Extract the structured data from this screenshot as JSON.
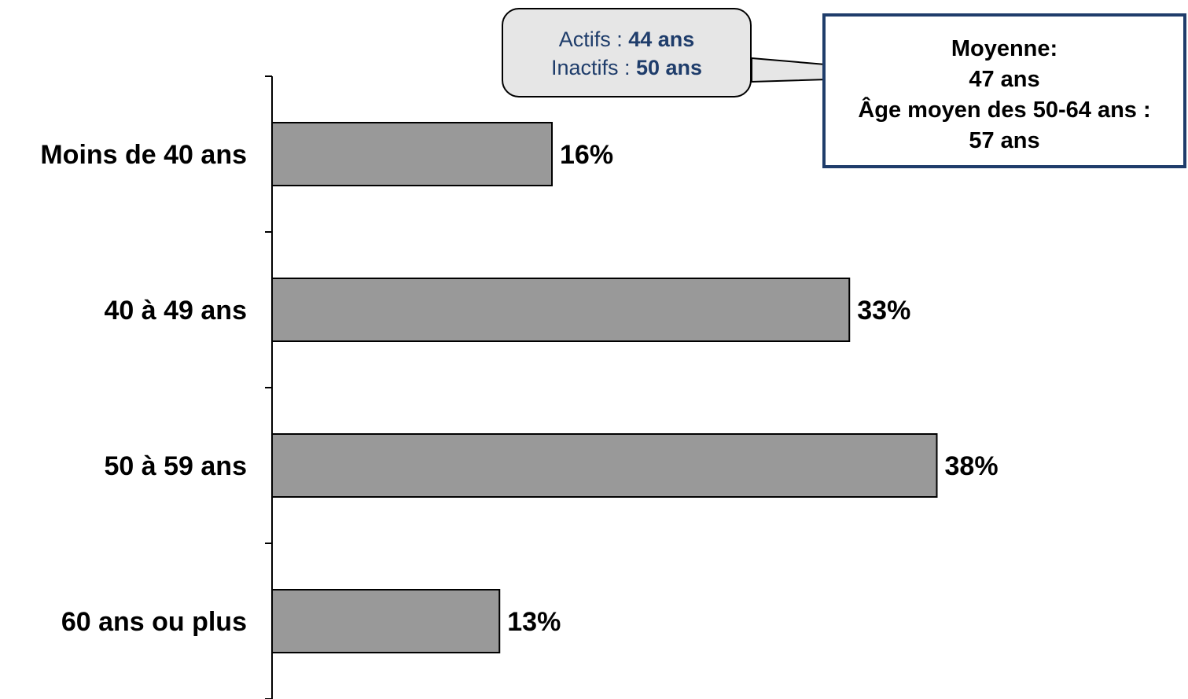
{
  "chart_data": {
    "type": "bar",
    "orientation": "horizontal",
    "categories": [
      "Moins de 40 ans",
      "40 à 49 ans",
      "50 à 59 ans",
      "60 ans ou plus"
    ],
    "values": [
      16,
      33,
      38,
      13
    ],
    "value_labels": [
      "16%",
      "33%",
      "38%",
      "13%"
    ],
    "unit": "%",
    "xlim": [
      0,
      40
    ],
    "bar_color": "#999999",
    "grid": false,
    "legend": "none"
  },
  "callout": {
    "actifs_prefix": "Actifs : ",
    "actifs_value": "44 ans",
    "inactifs_prefix": "Inactifs : ",
    "inactifs_value": "50 ans",
    "text_color": "#1f3d6b"
  },
  "average_box": {
    "line1": "Moyenne:",
    "line2": "47 ans",
    "line3": "Âge moyen des 50-64 ans :",
    "line4": "57 ans",
    "border_color": "#1f3d6b"
  }
}
